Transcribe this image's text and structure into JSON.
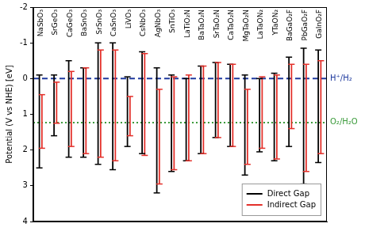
{
  "chart_data": {
    "type": "range",
    "categories": [
      "NaSbO₃",
      "SrGeO₃",
      "CaGeO₃",
      "BaSnO₃",
      "SrSnO₃",
      "CaSnO₃",
      "LiVO₃",
      "CsNbO₃",
      "AgNbO₃",
      "SnTiO₃",
      "LaTiO₂N",
      "BaTaO₂N",
      "SrTaO₂N",
      "CaTaO₂N",
      "MgTaO₂N",
      "LaTaON₂",
      "YTaON₂",
      "BaGaO₂F",
      "PbGaO₂F",
      "GaInO₂F"
    ],
    "series": [
      {
        "name": "Direct Gap",
        "color": "#000000",
        "values": [
          [
            -0.1,
            2.5
          ],
          [
            -0.1,
            1.6
          ],
          [
            -0.5,
            2.2
          ],
          [
            -0.3,
            2.2
          ],
          [
            -1.0,
            2.4
          ],
          [
            -1.0,
            2.55
          ],
          [
            -0.05,
            1.9
          ],
          [
            -0.75,
            2.1
          ],
          [
            -0.3,
            3.2
          ],
          [
            -0.1,
            2.6
          ],
          [
            0.0,
            2.3
          ],
          [
            -0.35,
            2.1
          ],
          [
            -0.45,
            1.65
          ],
          [
            -0.4,
            1.9
          ],
          [
            -0.1,
            2.7
          ],
          [
            0.0,
            2.05
          ],
          [
            -0.15,
            2.3
          ],
          [
            -0.6,
            1.9
          ],
          [
            -0.85,
            2.95
          ],
          [
            -0.8,
            2.35
          ]
        ]
      },
      {
        "name": "Indirect Gap",
        "color": "#e3302a",
        "values": [
          [
            0.45,
            1.95
          ],
          [
            0.1,
            1.25
          ],
          [
            -0.2,
            1.9
          ],
          [
            -0.3,
            2.1
          ],
          [
            -0.8,
            2.2
          ],
          [
            -0.8,
            2.3
          ],
          [
            0.5,
            1.6
          ],
          [
            -0.7,
            2.15
          ],
          [
            0.3,
            2.95
          ],
          [
            -0.05,
            2.55
          ],
          [
            -0.1,
            2.3
          ],
          [
            -0.35,
            2.1
          ],
          [
            -0.45,
            1.65
          ],
          [
            -0.4,
            1.9
          ],
          [
            0.3,
            2.4
          ],
          [
            -0.05,
            1.95
          ],
          [
            -0.1,
            2.25
          ],
          [
            -0.4,
            1.4
          ],
          [
            -0.4,
            2.6
          ],
          [
            -0.5,
            2.1
          ]
        ]
      }
    ],
    "y_label": "Potential (V vs NHE) [eV]",
    "ylim": [
      4,
      -2
    ],
    "yticks": [
      -2,
      -1,
      0,
      1,
      2,
      3,
      4
    ],
    "grid": false,
    "legend": "lower right",
    "annotations": [
      {
        "value": 0,
        "label": "H⁺/H₂",
        "color": "#1f3a9e",
        "line_style": "dashed"
      },
      {
        "value": 1.23,
        "label": "O₂/H₂O",
        "color": "#3a9a3a",
        "line_style": "dotted"
      }
    ]
  }
}
